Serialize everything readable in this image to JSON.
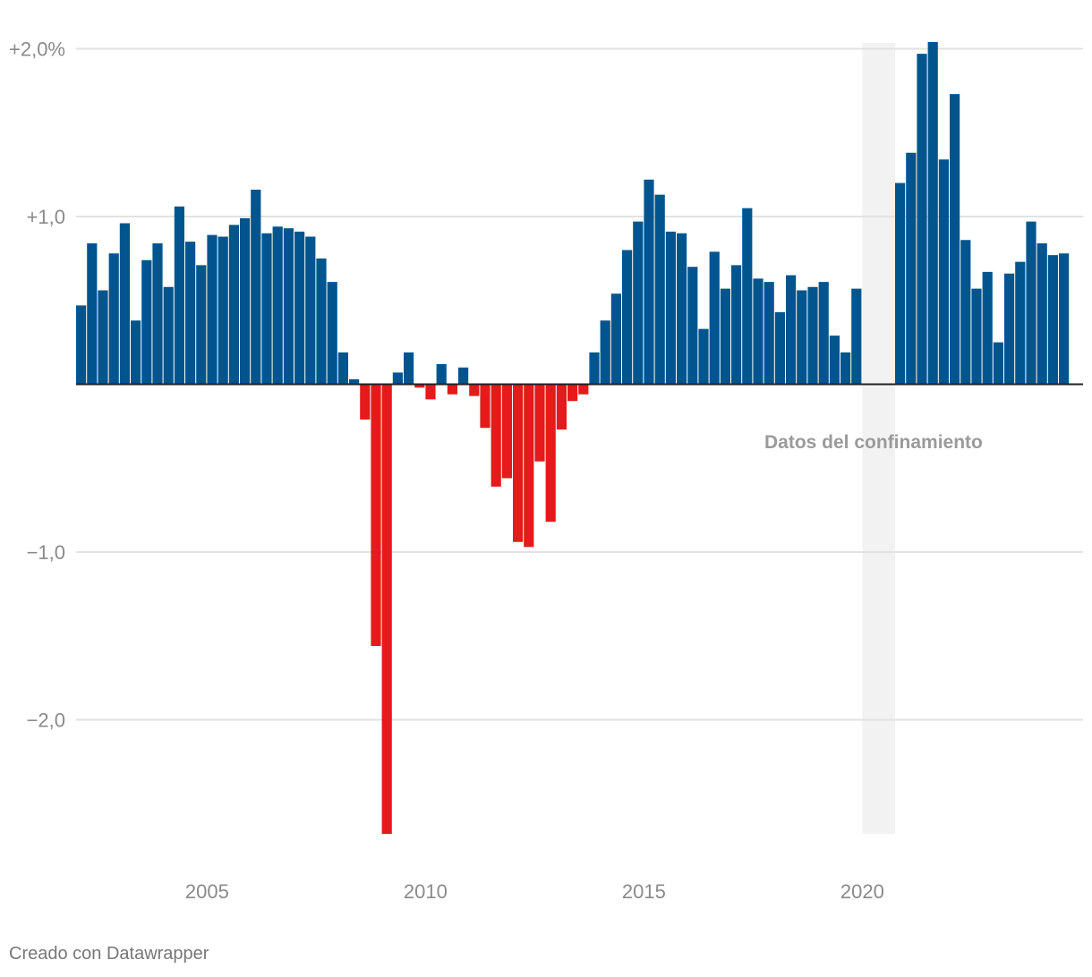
{
  "chart_data": {
    "type": "bar",
    "title": "",
    "xlabel": "",
    "ylabel": "",
    "ylim": [
      -2.7,
      2.05
    ],
    "y_ticks": [
      {
        "value": 2.0,
        "label": "+2,0%"
      },
      {
        "value": 1.0,
        "label": "+1,0"
      },
      {
        "value": -1.0,
        "label": "−1,0"
      },
      {
        "value": -2.0,
        "label": "−2,0"
      }
    ],
    "x_ticks": [
      {
        "value": 2005,
        "label": "2005"
      },
      {
        "value": 2010,
        "label": "2010"
      },
      {
        "value": 2015,
        "label": "2015"
      },
      {
        "value": 2020,
        "label": "2020"
      }
    ],
    "grid": true,
    "x_start": 2002.0,
    "period": "quarter",
    "values": [
      0.47,
      0.84,
      0.56,
      0.78,
      0.96,
      0.38,
      0.74,
      0.84,
      0.58,
      1.06,
      0.85,
      0.71,
      0.89,
      0.88,
      0.95,
      0.99,
      1.16,
      0.9,
      0.94,
      0.93,
      0.91,
      0.88,
      0.75,
      0.61,
      0.19,
      0.03,
      -0.21,
      -1.56,
      -2.68,
      0.07,
      0.19,
      -0.02,
      -0.09,
      0.12,
      -0.06,
      0.1,
      -0.07,
      -0.26,
      -0.61,
      -0.56,
      -0.94,
      -0.97,
      -0.46,
      -0.82,
      -0.27,
      -0.1,
      -0.06,
      0.19,
      0.38,
      0.54,
      0.8,
      0.97,
      1.22,
      1.13,
      0.91,
      0.9,
      0.7,
      0.33,
      0.79,
      0.57,
      0.71,
      1.05,
      0.63,
      0.61,
      0.43,
      0.65,
      0.56,
      0.58,
      0.61,
      0.29,
      0.19,
      0.57,
      null,
      null,
      null,
      1.2,
      1.38,
      1.97,
      2.04,
      1.34,
      1.73,
      0.86,
      0.57,
      0.67,
      0.25,
      0.66,
      0.73,
      0.97,
      0.84,
      0.77,
      0.78
    ],
    "colors": {
      "positive": "#00558f",
      "negative": "#e41a1c",
      "lockdown_band": "#f2f2f2"
    },
    "annotation": "Datos del confinamiento",
    "lockdown_range": [
      2020.0,
      2020.75
    ]
  },
  "footer": {
    "credit": "Creado con Datawrapper"
  }
}
